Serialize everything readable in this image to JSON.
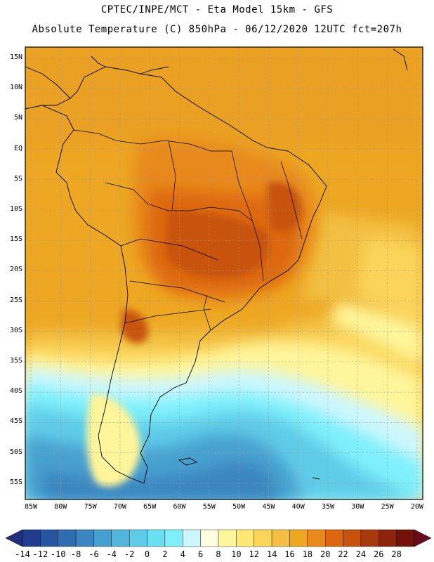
{
  "header": {
    "line1": "CPTEC/INPE/MCT -  Eta Model 15km - GFS",
    "line2": "Absolute Temperature (C) 850hPa - 06/12/2020 12UTC fct=207h"
  },
  "map": {
    "lat_labels": [
      "15N",
      "10N",
      "5N",
      "EQ",
      "5S",
      "10S",
      "15S",
      "20S",
      "25S",
      "30S",
      "35S",
      "40S",
      "45S",
      "50S",
      "55S"
    ],
    "lon_labels": [
      "85W",
      "80W",
      "75W",
      "70W",
      "65W",
      "60W",
      "55W",
      "50W",
      "45W",
      "40W",
      "35W",
      "30W",
      "25W",
      "20W"
    ]
  },
  "colorbar": {
    "labels": [
      "-14",
      "-12",
      "-10",
      "-8",
      "-6",
      "-4",
      "-2",
      "0",
      "2",
      "4",
      "6",
      "8",
      "10",
      "12",
      "14",
      "16",
      "18",
      "20",
      "22",
      "24",
      "26",
      "28"
    ],
    "colors": [
      "#1f3d8c",
      "#28559f",
      "#2f6db0",
      "#3b86c0",
      "#46a0cf",
      "#52b6dc",
      "#5ecce8",
      "#6adff2",
      "#7ff0fb",
      "#cdf7ff",
      "#fffde0",
      "#fff59a",
      "#ffe873",
      "#fbd55a",
      "#f3c043",
      "#eda722",
      "#e8891a",
      "#dd6710",
      "#c7520c",
      "#a8390a",
      "#8c230a",
      "#74120a"
    ],
    "low_color": "#22307a",
    "high_color": "#6a0a1e"
  }
}
